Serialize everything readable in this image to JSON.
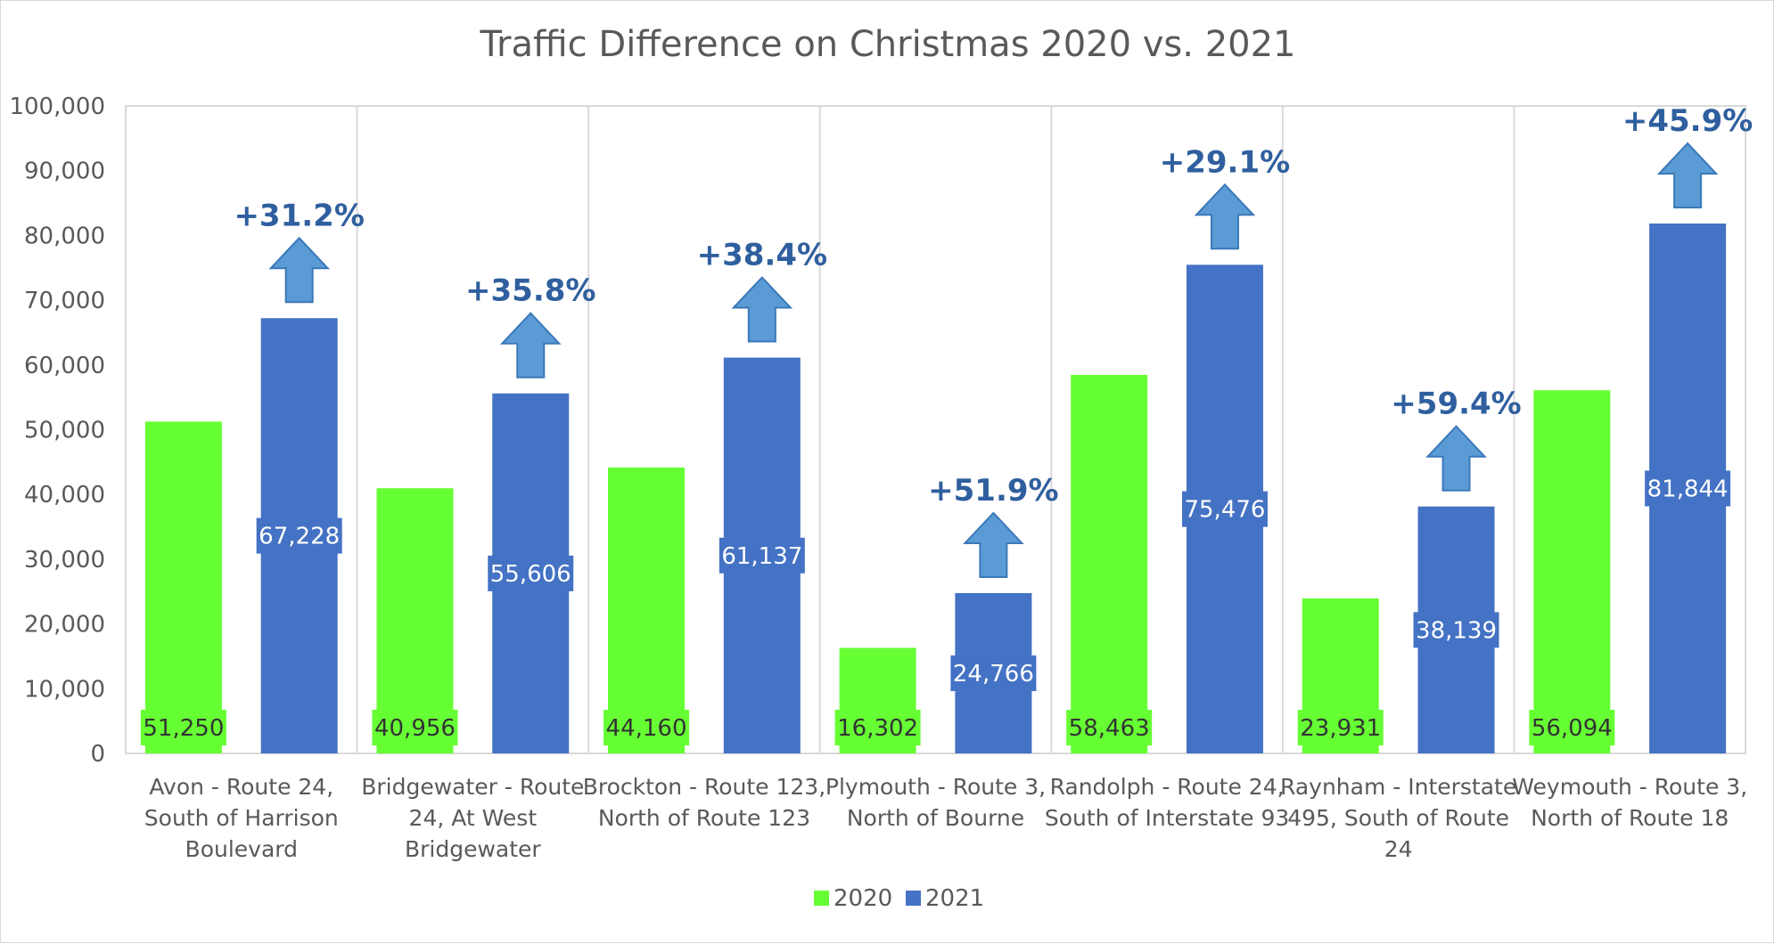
{
  "chart_data": {
    "type": "bar",
    "title": "Traffic Difference on Christmas 2020 vs. 2021",
    "xlabel": "",
    "ylabel": "",
    "ylim": [
      0,
      100000
    ],
    "yticks": [
      "0",
      "10,000",
      "20,000",
      "30,000",
      "40,000",
      "50,000",
      "60,000",
      "70,000",
      "80,000",
      "90,000",
      "100,000"
    ],
    "categories": [
      [
        "Avon - Route 24,",
        "South of Harrison",
        "Boulevard"
      ],
      [
        "Bridgewater - Route",
        "24, At West",
        "Bridgewater"
      ],
      [
        "Brockton - Route 123,",
        "North of Route 123"
      ],
      [
        "Plymouth - Route 3,",
        "North of Bourne"
      ],
      [
        "Randolph - Route 24,",
        "South of Interstate 93"
      ],
      [
        "Raynham - Interstate",
        "495, South of Route",
        "24"
      ],
      [
        "Weymouth - Route 3,",
        "North of Route 18"
      ]
    ],
    "series": [
      {
        "name": "2020",
        "color": "#66ff33",
        "values": [
          51250,
          40956,
          44160,
          16302,
          58463,
          23931,
          56094
        ],
        "labels": [
          "51,250",
          "40,956",
          "44,160",
          "16,302",
          "58,463",
          "23,931",
          "56,094"
        ]
      },
      {
        "name": "2021",
        "color": "#4472c4",
        "values": [
          67228,
          55606,
          61137,
          24766,
          75476,
          38139,
          81844
        ],
        "labels": [
          "67,228",
          "55,606",
          "61,137",
          "24,766",
          "75,476",
          "38,139",
          "81,844"
        ]
      }
    ],
    "annotations": [
      "+31.2%",
      "+35.8%",
      "+38.4%",
      "+51.9%",
      "+29.1%",
      "+59.4%",
      "+45.9%"
    ],
    "annotation_style": "up-arrow",
    "arrow_color": "#5b9bd5",
    "grid": "vertical separators between categories",
    "legend_position": "bottom"
  }
}
